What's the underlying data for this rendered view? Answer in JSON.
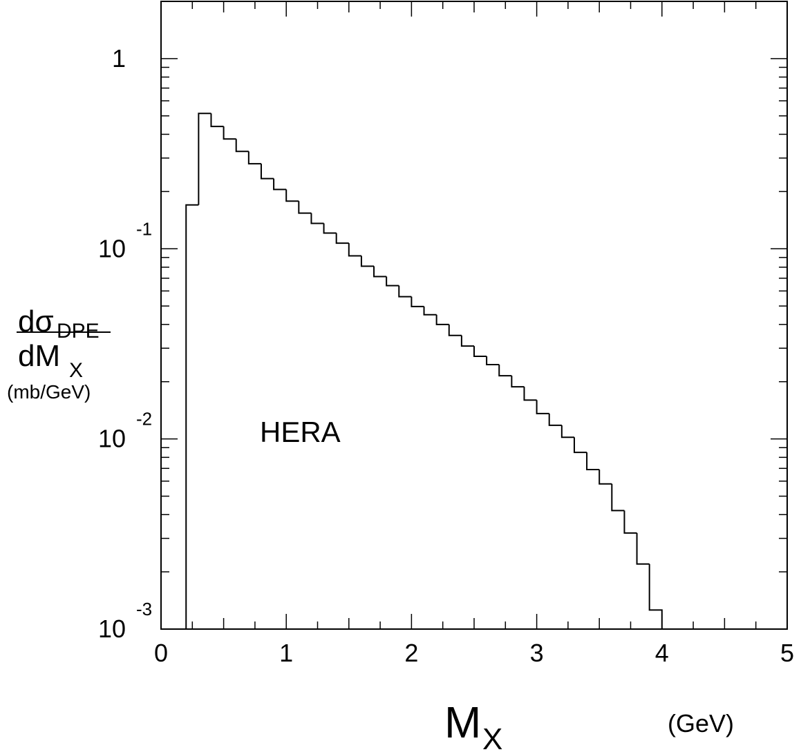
{
  "chart_data": {
    "type": "histogram",
    "y_label": {
      "numerator": "dσ",
      "numerator_sub": "DPE",
      "denominator": "dM",
      "denominator_sub": "X",
      "unit": "(mb/GeV)"
    },
    "x_label": {
      "text": "M",
      "sub": "X",
      "unit": "(GeV)"
    },
    "annotation": "HERA",
    "bins": [
      0.2,
      0.3,
      0.4,
      0.5,
      0.6,
      0.7,
      0.8,
      0.9,
      1.0,
      1.1,
      1.2,
      1.3,
      1.4,
      1.5,
      1.6,
      1.7,
      1.8,
      1.9,
      2.0,
      2.1,
      2.2,
      2.3,
      2.4,
      2.5,
      2.6,
      2.7,
      2.8,
      2.9,
      3.0,
      3.1,
      3.2,
      3.3,
      3.4,
      3.5,
      3.6,
      3.7,
      3.8,
      3.9,
      4.0
    ],
    "values": [
      0.17,
      0.515,
      0.44,
      0.378,
      0.325,
      0.28,
      0.234,
      0.205,
      0.178,
      0.154,
      0.136,
      0.121,
      0.107,
      0.0918,
      0.081,
      0.0714,
      0.064,
      0.056,
      0.0497,
      0.045,
      0.04,
      0.035,
      0.0308,
      0.0272,
      0.0246,
      0.0215,
      0.0188,
      0.016,
      0.0136,
      0.0118,
      0.0102,
      0.0085,
      0.0069,
      0.0058,
      0.0042,
      0.0032,
      0.0022,
      0.00126
    ],
    "color": "#000000",
    "xlim": [
      0,
      5
    ],
    "xticks": [
      0,
      1,
      2,
      3,
      4,
      5
    ],
    "ylim": [
      0.001,
      2
    ],
    "log_y": true,
    "yticks": [
      {
        "value": 0.001,
        "label": "10",
        "exponent": "-3"
      },
      {
        "value": 0.01,
        "label": "10",
        "exponent": "-2"
      },
      {
        "value": 0.1,
        "label": "10",
        "exponent": "-1"
      },
      1
    ]
  }
}
